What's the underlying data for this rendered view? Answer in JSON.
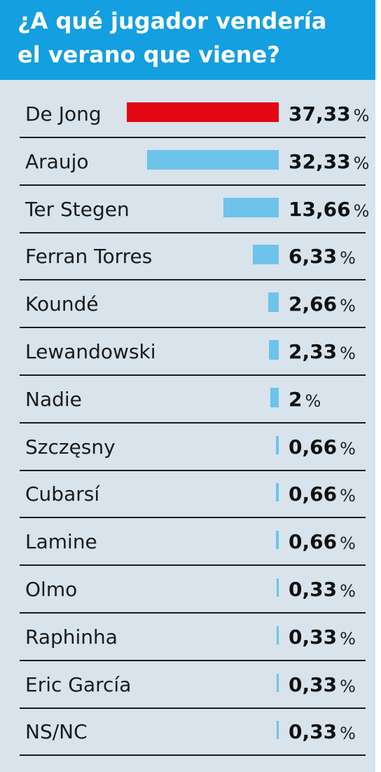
{
  "title": "¿A qué jugador vendería el verano que viene?",
  "title_lines": [
    "¿A qué jugador vendería",
    "el verano que viene?"
  ],
  "chart_data": {
    "type": "bar",
    "orientation": "horizontal",
    "title": "¿A qué jugador vendería el verano que viene?",
    "categories": [
      "De Jong",
      "Araujo",
      "Ter Stegen",
      "Ferran Torres",
      "Koundé",
      "Lewandowski",
      "Nadie",
      "Szczęsny",
      "Cubarsí",
      "Lamine",
      "Olmo",
      "Raphinha",
      "Eric García",
      "NS/NC"
    ],
    "values": [
      37.33,
      32.33,
      13.66,
      6.33,
      2.66,
      2.33,
      2,
      0.66,
      0.66,
      0.66,
      0.33,
      0.33,
      0.33,
      0.33
    ],
    "value_labels": [
      "37,33",
      "32,33",
      "13,66",
      "6,33",
      "2,66",
      "2,33",
      "2",
      "0,66",
      "0,66",
      "0,66",
      "0,33",
      "0,33",
      "0,33",
      "0,33"
    ],
    "unit": "%",
    "highlight_index": 0,
    "colors": {
      "header": "#139fe0",
      "highlight": "#e30613",
      "bar": "#6ec3ea",
      "background": "#d8e3ec"
    }
  }
}
